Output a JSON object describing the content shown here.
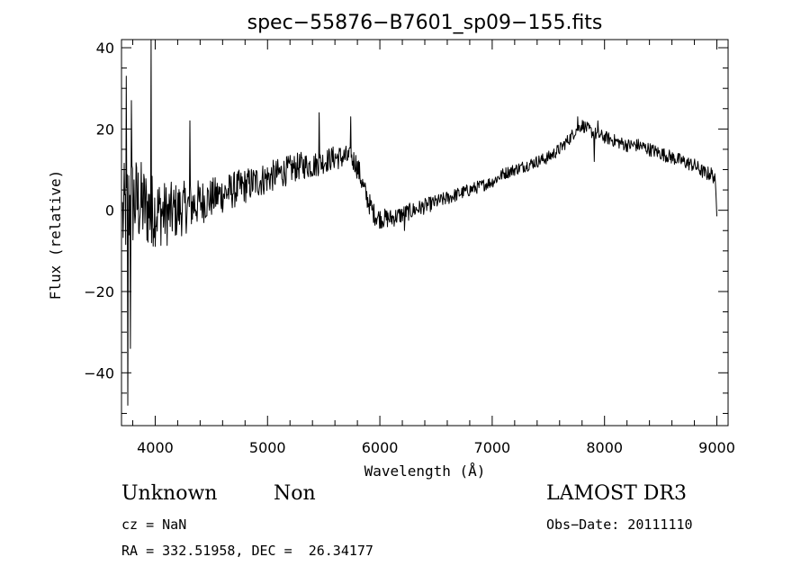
{
  "chart_data": {
    "type": "line",
    "title": "spec−55876−B7601_sp09−155.fits",
    "xlabel": "Wavelength (Å)",
    "ylabel": "Flux (relative)",
    "xlim": [
      3700,
      9100
    ],
    "ylim": [
      -53,
      42
    ],
    "xticks": [
      4000,
      5000,
      6000,
      7000,
      8000,
      9000
    ],
    "xtick_labels": [
      "4000",
      "5000",
      "6000",
      "7000",
      "8000",
      "9000"
    ],
    "yticks": [
      -40,
      -20,
      0,
      20,
      40
    ],
    "ytick_labels": [
      "−40",
      "−20",
      "0",
      "20",
      "40"
    ],
    "grid": false,
    "series": [
      {
        "line_color": "#000000",
        "trend_x": [
          3710,
          3740,
          3780,
          3850,
          3900,
          3950,
          4000,
          4100,
          4200,
          4300,
          4400,
          4500,
          4600,
          4700,
          4800,
          4900,
          5000,
          5100,
          5200,
          5300,
          5400,
          5500,
          5600,
          5700,
          5780,
          5820,
          5860,
          5900,
          5950,
          6000,
          6100,
          6200,
          6300,
          6400,
          6500,
          6600,
          6700,
          6800,
          6900,
          7000,
          7100,
          7200,
          7300,
          7400,
          7500,
          7600,
          7700,
          7750,
          7800,
          7850,
          7900,
          8000,
          8100,
          8200,
          8300,
          8400,
          8500,
          8600,
          8700,
          8800,
          8850,
          8900,
          8950,
          8980,
          9000
        ],
        "trend_y": [
          -2,
          0,
          2,
          2,
          1,
          0,
          0,
          -1,
          0,
          1,
          2,
          3,
          4,
          5,
          6,
          7,
          8,
          9,
          10,
          11,
          11,
          12,
          13,
          13,
          12,
          9,
          5,
          2,
          -1,
          -2,
          -2,
          -1,
          0,
          1,
          2,
          3,
          4,
          5,
          6,
          7,
          9,
          10,
          11,
          12,
          13,
          15,
          18,
          20,
          21,
          20,
          19,
          18,
          17,
          16,
          16,
          15,
          14,
          13,
          12,
          11,
          10,
          9,
          9,
          8,
          0
        ],
        "noise_x": [
          3700,
          3800,
          4000,
          4200,
          4500,
          5000,
          5500,
          5800,
          6000,
          6500,
          7000,
          8000,
          9000
        ],
        "noise_amp": [
          13,
          12,
          9,
          7,
          5,
          4,
          3,
          3,
          2.5,
          1.8,
          1.5,
          1.6,
          1.8
        ],
        "spikes": [
          {
            "x": 3755,
            "y": -48
          },
          {
            "x": 3740,
            "y": 33
          },
          {
            "x": 3780,
            "y": -34
          },
          {
            "x": 3790,
            "y": 27
          },
          {
            "x": 3965,
            "y": 42
          },
          {
            "x": 3970,
            "y": -8
          },
          {
            "x": 4310,
            "y": 22
          },
          {
            "x": 5460,
            "y": 24
          },
          {
            "x": 5740,
            "y": 23
          },
          {
            "x": 6220,
            "y": -5
          },
          {
            "x": 7760,
            "y": 23
          },
          {
            "x": 7940,
            "y": 22
          },
          {
            "x": 7910,
            "y": 12
          }
        ],
        "samples": 1150
      }
    ]
  },
  "info": {
    "object_class": "Unknown",
    "object_subclass": "Non",
    "survey": "LAMOST DR3",
    "redshift": "cz = NaN",
    "obs_date": "Obs−Date: 20111110",
    "coords": "RA = 332.51958, DEC =  26.34177"
  }
}
